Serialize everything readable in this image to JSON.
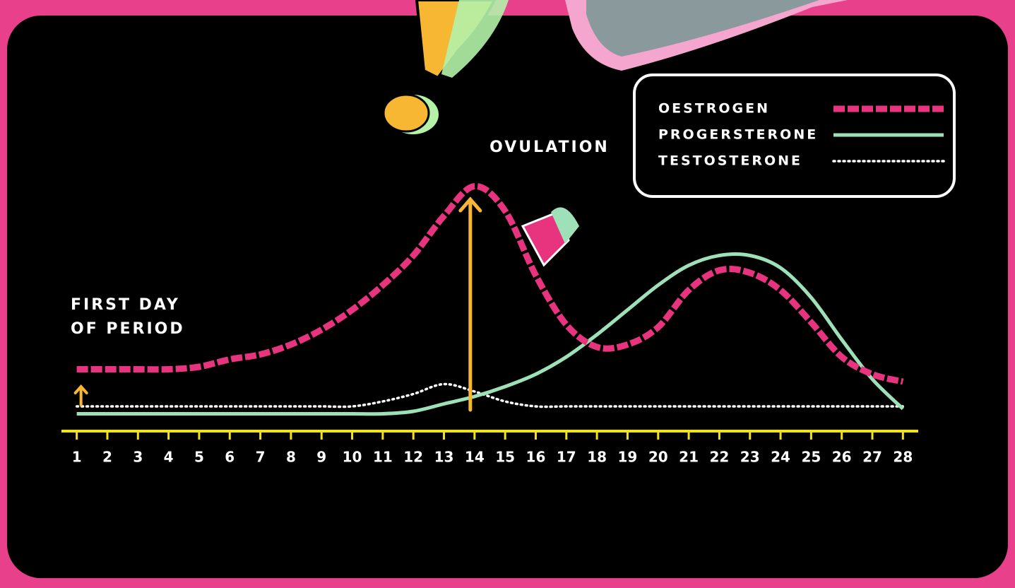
{
  "chart_data": {
    "type": "line",
    "x": [
      1,
      2,
      3,
      4,
      5,
      6,
      7,
      8,
      9,
      10,
      11,
      12,
      13,
      14,
      15,
      16,
      17,
      18,
      19,
      20,
      21,
      22,
      23,
      24,
      25,
      26,
      27,
      28
    ],
    "xlim": [
      0.5,
      28.5
    ],
    "xticks": [
      1,
      2,
      3,
      4,
      5,
      6,
      7,
      8,
      9,
      10,
      11,
      12,
      13,
      14,
      15,
      16,
      17,
      18,
      19,
      20,
      21,
      22,
      23,
      24,
      25,
      26,
      27,
      28
    ],
    "ylim": [
      0,
      100
    ],
    "axis_color": "#f2e21c",
    "series": [
      {
        "name": "OESTROGEN",
        "color": "#e8347f",
        "style": "dashed",
        "values": [
          25,
          25,
          25,
          25,
          26,
          29,
          31,
          35,
          41,
          49,
          59,
          71,
          87,
          99,
          89,
          63,
          43,
          34,
          35,
          42,
          57,
          65,
          64,
          57,
          44,
          30,
          23,
          20
        ]
      },
      {
        "name": "PROGERSTERONE",
        "color": "#9ee0b8",
        "style": "solid",
        "values": [
          7,
          7,
          7,
          7,
          7,
          7,
          7,
          7,
          7,
          7,
          7,
          8,
          11,
          14,
          18,
          23,
          30,
          39,
          49,
          59,
          67,
          71,
          71,
          66,
          54,
          37,
          21,
          9
        ]
      },
      {
        "name": "TESTOSTERONE",
        "color": "#ffffff",
        "style": "dotted",
        "values": [
          10,
          10,
          10,
          10,
          10,
          10,
          10,
          10,
          10,
          10,
          12,
          15,
          19,
          16,
          12,
          10,
          10,
          10,
          10,
          10,
          10,
          10,
          10,
          10,
          10,
          10,
          10,
          10
        ]
      }
    ],
    "annotations": [
      {
        "text": "OVULATION",
        "x": 14
      },
      {
        "text": [
          "FIRST DAY",
          "OF PERIOD"
        ],
        "x": 1
      }
    ]
  }
}
